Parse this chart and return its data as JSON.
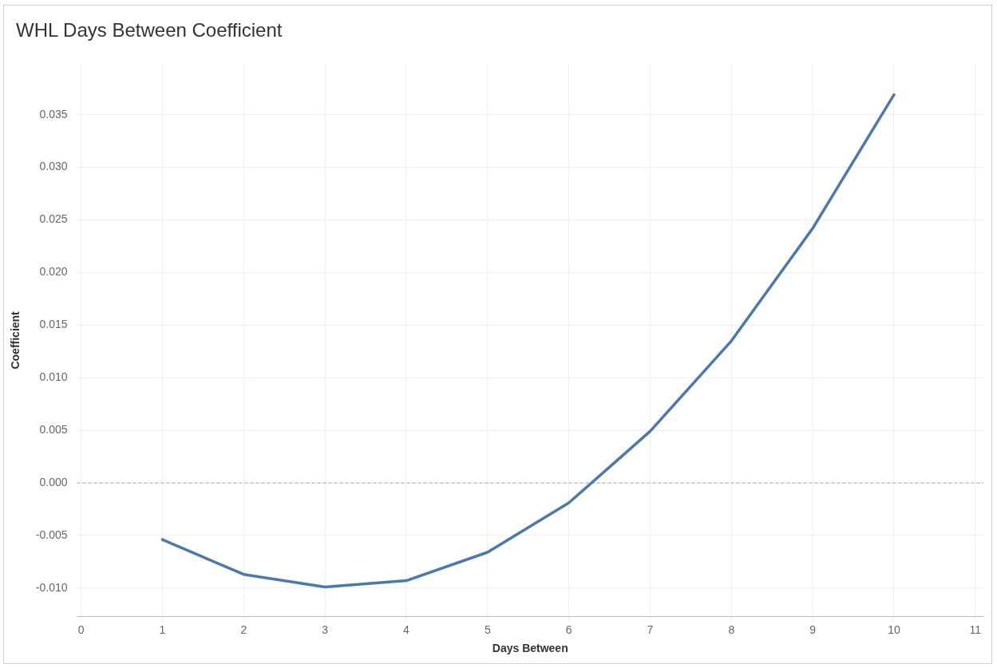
{
  "chart_data": {
    "type": "line",
    "title": "WHL Days Between Coefficient",
    "xlabel": "Days Between",
    "ylabel": "Coefficient",
    "x": [
      1,
      2,
      3,
      4,
      5,
      6,
      7,
      8,
      9,
      10
    ],
    "series": [
      {
        "color": "#4e79a7",
        "values": [
          -0.0054,
          -0.0087,
          -0.0099,
          -0.0093,
          -0.0066,
          -0.0019,
          0.0049,
          0.0135,
          0.0242,
          0.0369
        ]
      }
    ],
    "xlim": [
      -0.05,
      11.1
    ],
    "xticks": [
      0,
      1,
      2,
      3,
      4,
      5,
      6,
      7,
      8,
      9,
      10,
      11
    ],
    "ylim": [
      -0.0127,
      0.0398
    ],
    "yticks": [
      {
        "value": -0.01,
        "label": "-0.010"
      },
      {
        "value": -0.005,
        "label": "-0.005"
      },
      {
        "value": 0,
        "label": "0.000"
      },
      {
        "value": 0.005,
        "label": "0.005"
      },
      {
        "value": 0.01,
        "label": "0.010"
      },
      {
        "value": 0.015,
        "label": "0.015"
      },
      {
        "value": 0.02,
        "label": "0.020"
      },
      {
        "value": 0.025,
        "label": "0.025"
      },
      {
        "value": 0.03,
        "label": "0.030"
      },
      {
        "value": 0.035,
        "label": "0.035"
      }
    ],
    "ref_lines": [
      {
        "axis": "y",
        "value": 0,
        "color": "#aaaaaa",
        "line_style": "dashed"
      }
    ],
    "grid": true,
    "legend": false,
    "marker": "none",
    "line_style": "solid"
  }
}
